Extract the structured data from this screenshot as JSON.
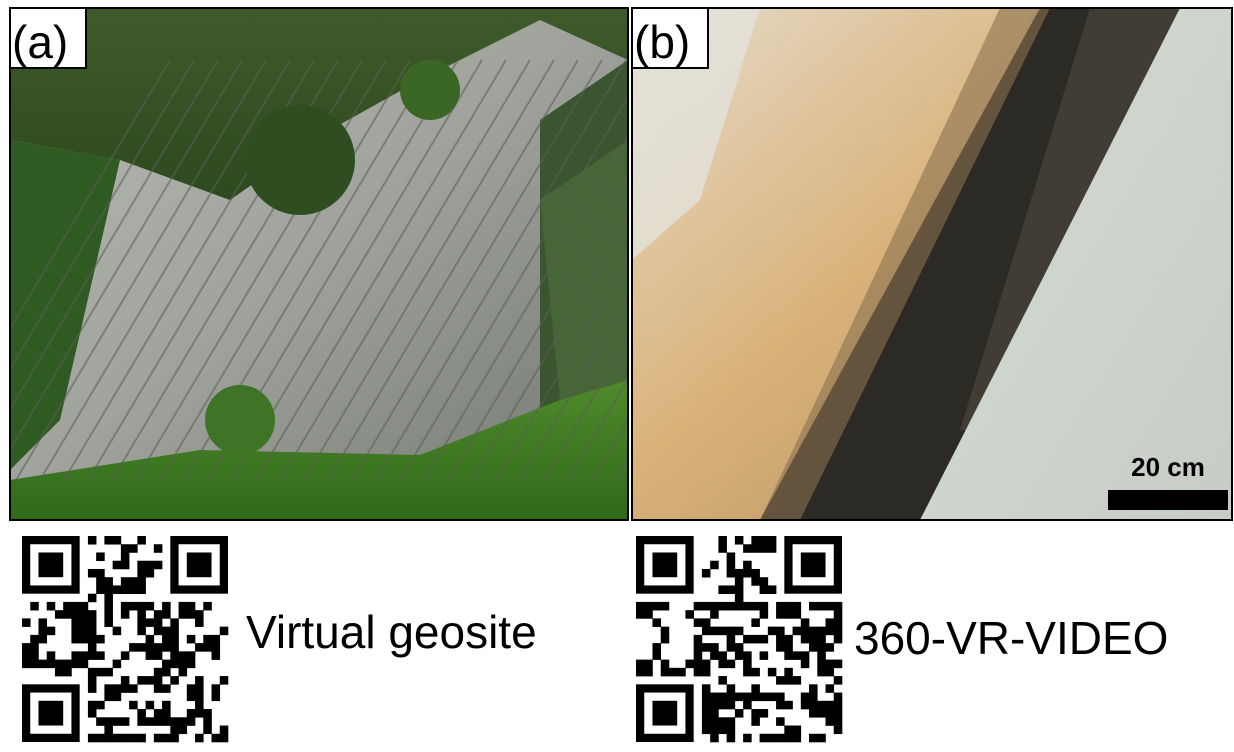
{
  "panels": [
    {
      "label": "(a)"
    },
    {
      "label": "(b)",
      "scale_bar": "20 cm"
    }
  ],
  "links": [
    {
      "text": "Virtual geosite"
    },
    {
      "text": "360-VR-VIDEO"
    }
  ]
}
